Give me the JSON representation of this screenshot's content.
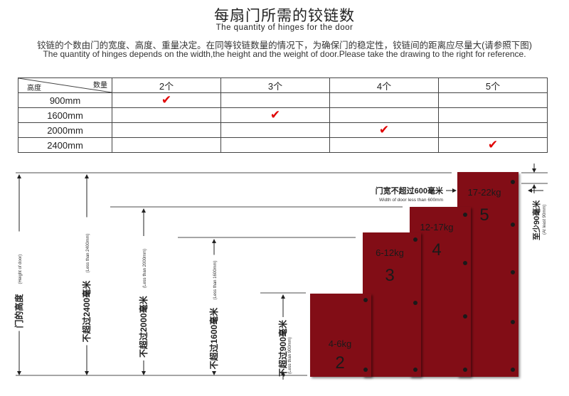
{
  "header": {
    "title": "每扇门所需的铰链数",
    "subtitle": "The quantity of hinges for the door",
    "description_cn": "铰链的个数由门的宽度、高度、重量决定。在同等铰链数量的情况下，为确保门的稳定性，铰链间的距离应尽量大(请参照下图)",
    "description_en": "The quantity of hinges depends on the width,the height and the weight of door.Please take the drawing to the right for reference."
  },
  "table": {
    "corner_top": "数量",
    "corner_bottom": "高度",
    "columns": [
      "2个",
      "3个",
      "4个",
      "5个"
    ],
    "rows": [
      {
        "label": "900mm",
        "checked": 0
      },
      {
        "label": "1600mm",
        "checked": 1
      },
      {
        "label": "2000mm",
        "checked": 2
      },
      {
        "label": "2400mm",
        "checked": 3
      }
    ],
    "check_icon": "red-checkmark",
    "check_color": "#e00000"
  },
  "diagram": {
    "door_color": "#820f14",
    "doors": [
      {
        "weight": "4-6kg",
        "hinges": "2"
      },
      {
        "weight": "6-12kg",
        "hinges": "3"
      },
      {
        "weight": "12-17kg",
        "hinges": "4"
      },
      {
        "weight": "17-22kg",
        "hinges": "5"
      }
    ],
    "height_label_cn": "门的高度",
    "height_label_en": "(Height of door)",
    "limits": [
      {
        "cn": "不超过2400毫米",
        "en": "(Less than 2400mm)"
      },
      {
        "cn": "不超过2000毫米",
        "en": "(Less than 2000mm)"
      },
      {
        "cn": "不超过1600毫米",
        "en": "(Less than 1600mm)"
      },
      {
        "cn": "不超过900毫米",
        "en": "(Less than 900mm)"
      }
    ],
    "width_cn": "门宽不超过600毫米",
    "width_en": "Width of door less than 600mm",
    "margin_cn": "至少90毫米",
    "margin_en": "(At least 90mm)"
  }
}
